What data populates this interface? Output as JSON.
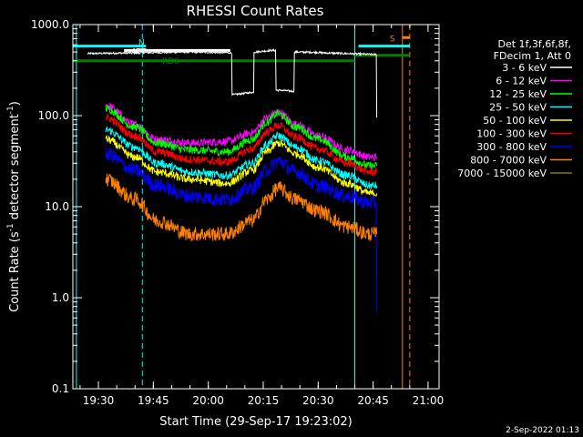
{
  "chart_data": {
    "type": "line",
    "title": "RHESSI Count Rates",
    "xlabel": "Start Time (29-Sep-17 19:23:02)",
    "ylabel_main": "Count Rate (s",
    "ylabel_sup1": "-1",
    "ylabel_mid": " detector segment",
    "ylabel_sup2": "-1",
    "ylabel_end": ")",
    "y_scale": "log",
    "ylim": [
      0.1,
      1000
    ],
    "xlim": [
      "19:23:02",
      "21:03:00"
    ],
    "x_ticks": [
      "19:30",
      "19:45",
      "20:00",
      "20:15",
      "20:30",
      "20:45",
      "21:00"
    ],
    "y_ticks": [
      "0.1",
      "1.0",
      "10.0",
      "100.0",
      "1000.0"
    ],
    "legend_placement": "right",
    "legend_header": [
      "Det 1f,3f,6f,8f,",
      "FDecim 1, Att 0"
    ],
    "series": [
      {
        "name": "3 - 6 keV",
        "color": "#ffffff",
        "x": [
          "19:27",
          "19:40",
          "19:55",
          "20:06",
          "20:07",
          "20:12",
          "20:13",
          "20:17",
          "20:20",
          "20:23",
          "20:24",
          "20:30",
          "20:31",
          "20:38",
          "20:45",
          "20:46"
        ],
        "values": [
          480,
          490,
          500,
          490,
          170,
          180,
          500,
          520,
          190,
          185,
          500,
          495,
          490,
          480,
          470,
          95
        ]
      },
      {
        "name": "6 - 12 keV",
        "color": "#ff00ff",
        "x": [
          "19:32",
          "19:40",
          "19:46",
          "19:55",
          "20:05",
          "20:12",
          "20:16",
          "20:19",
          "20:24",
          "20:30",
          "20:38",
          "20:44",
          "20:46"
        ],
        "values": [
          130,
          80,
          55,
          50,
          52,
          65,
          95,
          110,
          80,
          60,
          42,
          35,
          35
        ]
      },
      {
        "name": "12 - 25 keV",
        "color": "#00ff00",
        "x": [
          "19:32",
          "19:40",
          "19:46",
          "19:55",
          "20:05",
          "20:12",
          "20:16",
          "20:19",
          "20:24",
          "20:30",
          "20:38",
          "20:44",
          "20:46"
        ],
        "values": [
          120,
          75,
          50,
          42,
          40,
          55,
          85,
          105,
          75,
          55,
          35,
          28,
          28
        ]
      },
      {
        "name": "25 - 50 keV",
        "color": "#00ffff",
        "x": [
          "19:32",
          "19:40",
          "19:46",
          "19:55",
          "20:05",
          "20:12",
          "20:16",
          "20:19",
          "20:24",
          "20:30",
          "20:38",
          "20:44",
          "20:46"
        ],
        "values": [
          70,
          45,
          30,
          24,
          22,
          30,
          48,
          60,
          45,
          32,
          22,
          17,
          17
        ]
      },
      {
        "name": "50 - 100 keV",
        "color": "#ffff00",
        "x": [
          "19:32",
          "19:40",
          "19:46",
          "19:55",
          "20:05",
          "20:12",
          "20:16",
          "20:19",
          "20:24",
          "20:30",
          "20:38",
          "20:44",
          "20:46"
        ],
        "values": [
          55,
          35,
          24,
          20,
          18,
          25,
          40,
          50,
          38,
          27,
          18,
          14,
          14
        ]
      },
      {
        "name": "100 - 300 keV",
        "color": "#ff0000",
        "x": [
          "19:32",
          "19:40",
          "19:46",
          "19:55",
          "20:05",
          "20:12",
          "20:16",
          "20:19",
          "20:24",
          "20:30",
          "20:38",
          "20:44",
          "20:46"
        ],
        "values": [
          95,
          60,
          40,
          33,
          31,
          43,
          66,
          78,
          58,
          43,
          30,
          24,
          24
        ]
      },
      {
        "name": "300 - 800 keV",
        "color": "#0000ff",
        "x": [
          "19:32",
          "19:40",
          "19:46",
          "19:55",
          "20:05",
          "20:12",
          "20:16",
          "20:19",
          "20:24",
          "20:30",
          "20:38",
          "20:44",
          "20:46"
        ],
        "values": [
          38,
          25,
          17,
          13,
          12,
          16,
          25,
          32,
          24,
          17,
          13,
          11,
          0.7
        ]
      },
      {
        "name": "800 - 7000 keV",
        "color": "#ff8000",
        "x": [
          "19:32",
          "19:40",
          "19:46",
          "19:55",
          "20:05",
          "20:12",
          "20:16",
          "20:19",
          "20:24",
          "20:30",
          "20:38",
          "20:44",
          "20:46"
        ],
        "values": [
          20,
          12,
          7,
          5,
          5,
          7,
          12,
          16,
          12,
          9,
          6,
          5,
          5
        ]
      },
      {
        "name": "7000 - 15000 keV",
        "color": "#808000",
        "x": [],
        "values": []
      }
    ],
    "flag_bars": [
      {
        "label": "N",
        "color": "#00ffff",
        "start": "19:23:02",
        "end": "19:43:00",
        "level": 580
      },
      {
        "label": "ATT",
        "color": "#ffffff",
        "start": "19:37:00",
        "end": "19:43:30",
        "level": 520
      },
      {
        "label": "",
        "color": "#ffffff",
        "start": "19:43:30",
        "end": "20:06:00",
        "level": 520
      },
      {
        "label": "",
        "color": "#00ffff",
        "start": "20:41:00",
        "end": "20:55:00",
        "level": 580
      },
      {
        "label": "S",
        "color": "#ff8000",
        "start": "20:53:00",
        "end": "20:55:00",
        "level": 720
      },
      {
        "label": "RD6",
        "color": "#008000",
        "start": "19:23:02",
        "end": "20:40:00",
        "level": 400
      },
      {
        "label": "",
        "color": "#008000",
        "start": "20:40:00",
        "end": "20:55:00",
        "level": 460
      }
    ],
    "vertical_lines": [
      {
        "time": "19:24",
        "color": "#00ffff",
        "style": "solid"
      },
      {
        "time": "19:42",
        "color": "#00ffff",
        "style": "dashed"
      },
      {
        "time": "20:40",
        "color": "#00ffff",
        "style": "solid"
      },
      {
        "time": "20:53",
        "color": "#ff8000",
        "style": "solid"
      },
      {
        "time": "20:55",
        "color": "#ff8000",
        "style": "dashed"
      }
    ]
  },
  "footer_timestamp": "2-Sep-2022 01:13"
}
